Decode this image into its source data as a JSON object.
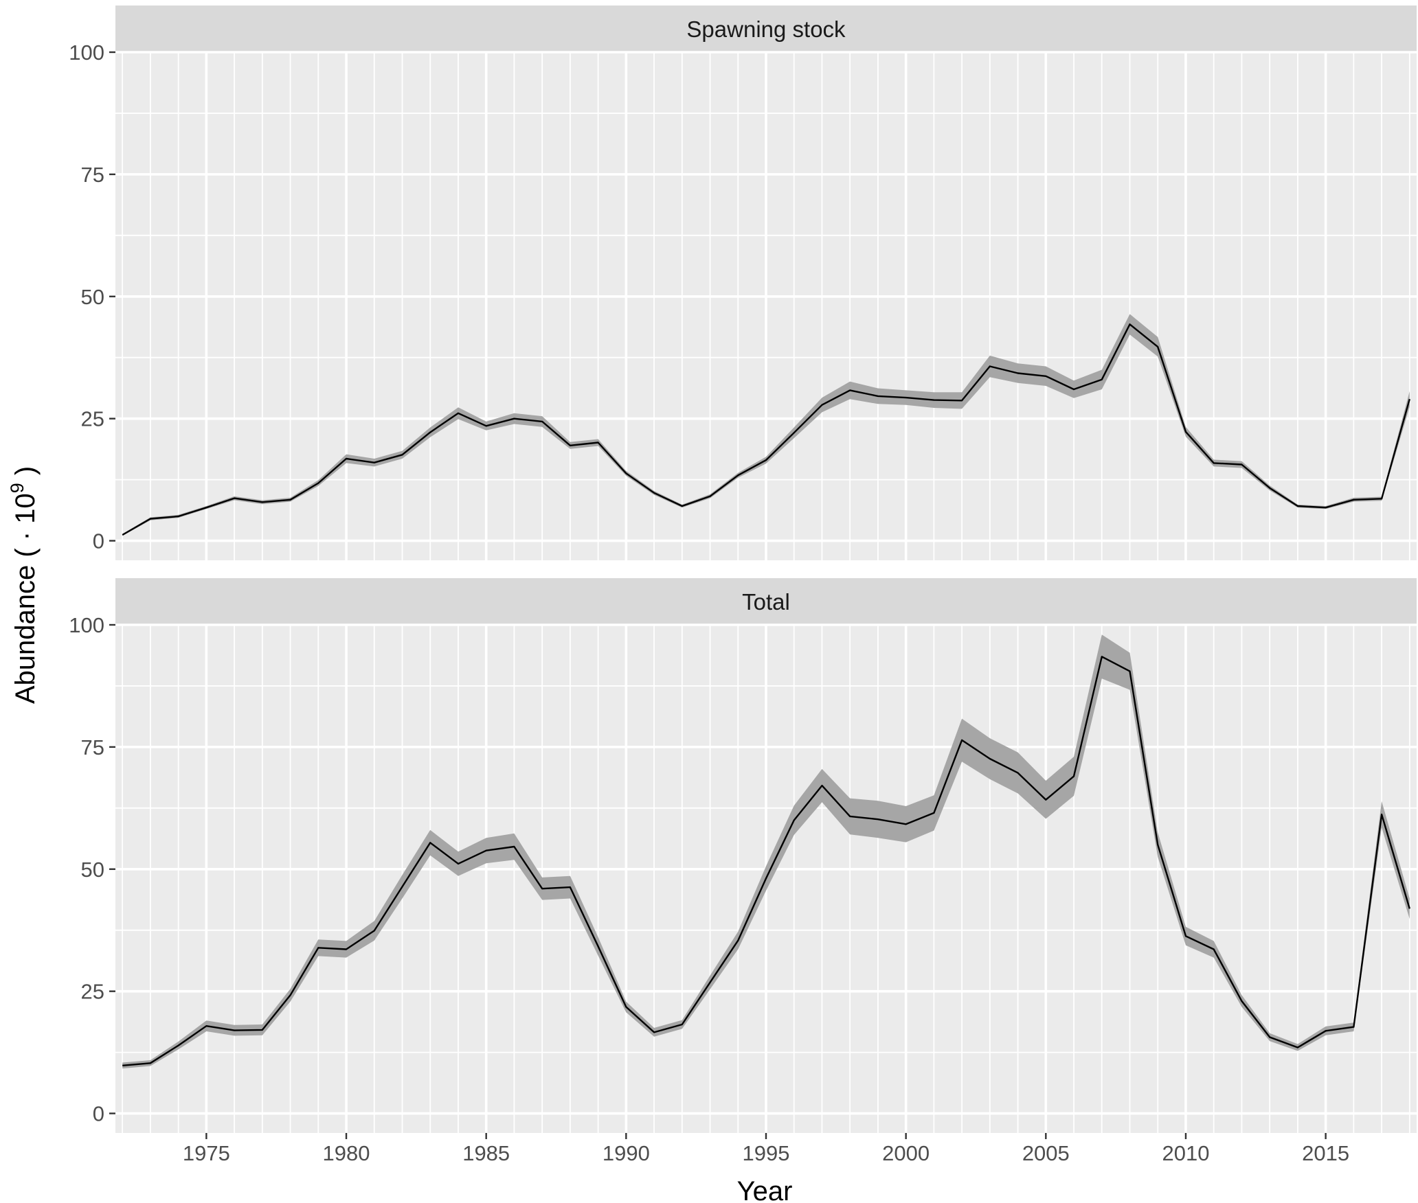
{
  "chart_data": {
    "type": "line",
    "xlabel": "Year",
    "ylabel": "Abundance ( · 10",
    "ylabel_exponent": "9",
    "ylabel_close": " )",
    "xlim": [
      1971.75,
      2018.25
    ],
    "ylim": [
      -4,
      100
    ],
    "x_ticks": [
      1975,
      1980,
      1985,
      1990,
      1995,
      2000,
      2005,
      2010,
      2015
    ],
    "y_ticks": [
      0,
      25,
      50,
      75,
      100
    ],
    "grid": true,
    "line_color": "#000000",
    "band_color": "#a6a6a6",
    "panel_background": "#ebebeb",
    "strip_background": "#d9d9d9",
    "panels": [
      {
        "title": "Spawning stock",
        "years": [
          1972,
          1973,
          1974,
          1975,
          1976,
          1977,
          1978,
          1979,
          1980,
          1981,
          1982,
          1983,
          1984,
          1985,
          1986,
          1987,
          1988,
          1989,
          1990,
          1991,
          1992,
          1993,
          1994,
          1995,
          1996,
          1997,
          1998,
          1999,
          2000,
          2001,
          2002,
          2003,
          2004,
          2005,
          2006,
          2007,
          2008,
          2009,
          2010,
          2011,
          2012,
          2013,
          2014,
          2015,
          2016,
          2017,
          2018
        ],
        "values": [
          1.2,
          4.5,
          5.0,
          6.8,
          8.7,
          7.9,
          8.4,
          11.8,
          16.8,
          16.0,
          17.6,
          22.2,
          26.1,
          23.5,
          25.0,
          24.4,
          19.5,
          20.1,
          13.8,
          9.8,
          7.1,
          9.1,
          13.4,
          16.5,
          22.1,
          27.8,
          30.8,
          29.6,
          29.3,
          28.8,
          28.7,
          35.7,
          34.3,
          33.7,
          31.0,
          33.0,
          44.3,
          39.7,
          22.3,
          15.9,
          15.6,
          10.8,
          7.1,
          6.8,
          8.4,
          8.6,
          29.0
        ],
        "lower": [
          1.0,
          4.2,
          4.7,
          6.5,
          8.3,
          7.5,
          8.0,
          11.2,
          15.9,
          15.2,
          16.8,
          21.2,
          24.9,
          22.6,
          23.9,
          23.3,
          18.8,
          19.4,
          13.3,
          9.4,
          6.8,
          8.7,
          12.9,
          15.8,
          21.0,
          26.3,
          29.0,
          28.0,
          27.8,
          27.2,
          27.0,
          33.5,
          32.3,
          31.7,
          29.2,
          31.0,
          42.2,
          37.7,
          21.3,
          15.2,
          14.9,
          10.3,
          6.8,
          6.5,
          8.0,
          8.2,
          27.4
        ],
        "upper": [
          1.4,
          4.8,
          5.3,
          7.1,
          9.1,
          8.3,
          8.8,
          12.4,
          17.7,
          16.8,
          18.4,
          23.2,
          27.3,
          24.4,
          26.1,
          25.5,
          20.2,
          20.8,
          14.3,
          10.2,
          7.4,
          9.5,
          13.9,
          17.2,
          23.2,
          29.3,
          32.6,
          31.2,
          30.8,
          30.4,
          30.4,
          37.9,
          36.3,
          35.7,
          32.8,
          35.0,
          46.4,
          41.7,
          23.3,
          16.6,
          16.3,
          11.3,
          7.4,
          7.1,
          8.8,
          9.0,
          30.6
        ]
      },
      {
        "title": "Total",
        "years": [
          1972,
          1973,
          1974,
          1975,
          1976,
          1977,
          1978,
          1979,
          1980,
          1981,
          1982,
          1983,
          1984,
          1985,
          1986,
          1987,
          1988,
          1989,
          1990,
          1991,
          1992,
          1993,
          1994,
          1995,
          1996,
          1997,
          1998,
          1999,
          2000,
          2001,
          2002,
          2003,
          2004,
          2005,
          2006,
          2007,
          2008,
          2009,
          2010,
          2011,
          2012,
          2013,
          2014,
          2015,
          2016,
          2017,
          2018
        ],
        "values": [
          9.8,
          10.3,
          13.9,
          17.9,
          17.0,
          17.1,
          24.2,
          33.9,
          33.6,
          37.4,
          46.4,
          55.4,
          51.1,
          53.8,
          54.6,
          46.0,
          46.3,
          34.2,
          21.8,
          16.6,
          18.2,
          26.8,
          35.4,
          48.1,
          60.0,
          67.1,
          60.8,
          60.2,
          59.2,
          61.5,
          76.4,
          72.6,
          69.7,
          64.2,
          69.0,
          93.5,
          90.5,
          55.0,
          36.3,
          33.6,
          23.0,
          15.6,
          13.5,
          16.9,
          17.7,
          61.2,
          41.9
        ],
        "lower": [
          9.2,
          9.7,
          13.1,
          16.8,
          15.9,
          16.0,
          22.9,
          32.2,
          31.9,
          35.4,
          44.0,
          52.8,
          48.6,
          51.2,
          51.9,
          43.7,
          44.0,
          32.3,
          20.7,
          15.7,
          17.3,
          25.4,
          33.6,
          45.6,
          57.0,
          63.7,
          57.1,
          56.4,
          55.5,
          57.9,
          72.0,
          68.4,
          65.5,
          60.3,
          65.0,
          89.0,
          86.7,
          52.5,
          34.4,
          31.9,
          21.8,
          14.8,
          12.8,
          16.0,
          16.8,
          58.5,
          39.8
        ],
        "upper": [
          10.4,
          10.9,
          14.7,
          19.0,
          18.1,
          18.2,
          25.5,
          35.6,
          35.3,
          39.4,
          48.8,
          58.0,
          53.6,
          56.4,
          57.3,
          48.3,
          48.6,
          36.1,
          22.9,
          17.5,
          19.1,
          28.2,
          37.2,
          50.6,
          63.0,
          70.5,
          64.5,
          64.0,
          62.9,
          65.1,
          80.8,
          76.8,
          73.9,
          68.1,
          73.0,
          98.0,
          94.3,
          57.5,
          38.2,
          35.3,
          24.2,
          16.4,
          14.2,
          17.8,
          18.6,
          63.9,
          44.0
        ]
      }
    ]
  }
}
